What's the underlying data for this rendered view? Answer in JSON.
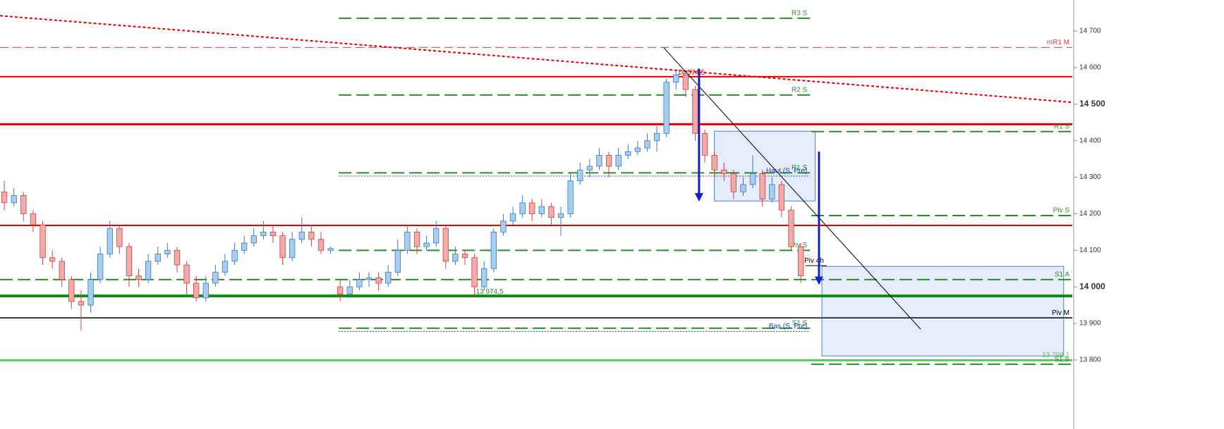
{
  "chart_data": {
    "type": "candlestick",
    "xlim": [
      -0.45,
      111.3
    ],
    "ylim": [
      13611,
      14785
    ],
    "yticks": [
      {
        "value": 14700,
        "label": "14 700"
      },
      {
        "value": 14600,
        "label": "14 600"
      },
      {
        "value": 14500,
        "label": "14 500",
        "bold": true
      },
      {
        "value": 14400,
        "label": "14 400"
      },
      {
        "value": 14300,
        "label": "14 300"
      },
      {
        "value": 14200,
        "label": "14 200"
      },
      {
        "value": 14100,
        "label": "14 100"
      },
      {
        "value": 14000,
        "label": "14 000",
        "bold": true
      },
      {
        "value": 13900,
        "label": "13 900"
      },
      {
        "value": 13800,
        "label": "13 800"
      }
    ],
    "up_color": "#a9cdee",
    "up_edge": "#3a78c0",
    "down_color": "#f3aaaa",
    "down_edge": "#d04040",
    "candles": [
      [
        14260,
        14290,
        14210,
        14230
      ],
      [
        14230,
        14270,
        14220,
        14250
      ],
      [
        14250,
        14260,
        14180,
        14200
      ],
      [
        14200,
        14210,
        14150,
        14170
      ],
      [
        14170,
        14180,
        14060,
        14080
      ],
      [
        14080,
        14100,
        14050,
        14070
      ],
      [
        14070,
        14080,
        14000,
        14020
      ],
      [
        14020,
        14030,
        13940,
        13960
      ],
      [
        13960,
        13990,
        13880,
        13950
      ],
      [
        13950,
        14040,
        13930,
        14020
      ],
      [
        14020,
        14110,
        14010,
        14090
      ],
      [
        14090,
        14180,
        14080,
        14160
      ],
      [
        14160,
        14170,
        14090,
        14110
      ],
      [
        14110,
        14120,
        14000,
        14030
      ],
      [
        14030,
        14050,
        14000,
        14020
      ],
      [
        14020,
        14090,
        14010,
        14070
      ],
      [
        14070,
        14110,
        14060,
        14090
      ],
      [
        14090,
        14120,
        14080,
        14100
      ],
      [
        14100,
        14110,
        14040,
        14060
      ],
      [
        14060,
        14070,
        13980,
        14010
      ],
      [
        14010,
        14030,
        13960,
        13970
      ],
      [
        13970,
        14030,
        13960,
        14010
      ],
      [
        14010,
        14060,
        14000,
        14040
      ],
      [
        14040,
        14090,
        14030,
        14070
      ],
      [
        14070,
        14120,
        14060,
        14100
      ],
      [
        14100,
        14140,
        14090,
        14120
      ],
      [
        14120,
        14160,
        14110,
        14140
      ],
      [
        14140,
        14180,
        14130,
        14150
      ],
      [
        14150,
        14170,
        14120,
        14140
      ],
      [
        14140,
        14150,
        14060,
        14080
      ],
      [
        14080,
        14150,
        14070,
        14130
      ],
      [
        14130,
        14190,
        14120,
        14150
      ],
      [
        14150,
        14170,
        14110,
        14130
      ],
      [
        14130,
        14150,
        14090,
        14100
      ],
      [
        14100,
        14110,
        14090,
        14105
      ],
      [
        14000,
        14020,
        13960,
        13980
      ],
      [
        13980,
        14020,
        13970,
        14000
      ],
      [
        14000,
        14040,
        13990,
        14020
      ],
      [
        14020,
        14040,
        14000,
        14025
      ],
      [
        14025,
        14040,
        13990,
        14010
      ],
      [
        14010,
        14060,
        14000,
        14040
      ],
      [
        14040,
        14130,
        14030,
        14100
      ],
      [
        14100,
        14170,
        14090,
        14150
      ],
      [
        14150,
        14160,
        14090,
        14110
      ],
      [
        14110,
        14140,
        14100,
        14120
      ],
      [
        14120,
        14180,
        14110,
        14160
      ],
      [
        14160,
        14170,
        14050,
        14070
      ],
      [
        14070,
        14110,
        14060,
        14090
      ],
      [
        14090,
        14100,
        14060,
        14080
      ],
      [
        14080,
        14090,
        13975,
        14000
      ],
      [
        14000,
        14070,
        13990,
        14050
      ],
      [
        14050,
        14160,
        14040,
        14150
      ],
      [
        14150,
        14200,
        14140,
        14180
      ],
      [
        14180,
        14220,
        14170,
        14200
      ],
      [
        14200,
        14250,
        14190,
        14230
      ],
      [
        14230,
        14240,
        14180,
        14200
      ],
      [
        14200,
        14240,
        14190,
        14220
      ],
      [
        14220,
        14230,
        14170,
        14190
      ],
      [
        14190,
        14220,
        14140,
        14200
      ],
      [
        14200,
        14310,
        14190,
        14290
      ],
      [
        14290,
        14340,
        14280,
        14320
      ],
      [
        14320,
        14350,
        14300,
        14330
      ],
      [
        14330,
        14380,
        14320,
        14360
      ],
      [
        14360,
        14370,
        14300,
        14330
      ],
      [
        14330,
        14380,
        14320,
        14360
      ],
      [
        14360,
        14390,
        14350,
        14370
      ],
      [
        14370,
        14400,
        14360,
        14380
      ],
      [
        14380,
        14420,
        14370,
        14400
      ],
      [
        14400,
        14440,
        14370,
        14420
      ],
      [
        14420,
        14570,
        14410,
        14560
      ],
      [
        14560,
        14595,
        14540,
        14580
      ],
      [
        14580,
        14590,
        14520,
        14540
      ],
      [
        14540,
        14550,
        14400,
        14420
      ],
      [
        14420,
        14430,
        14340,
        14360
      ],
      [
        14360,
        14370,
        14300,
        14320
      ],
      [
        14320,
        14340,
        14290,
        14310
      ],
      [
        14310,
        14320,
        14240,
        14260
      ],
      [
        14260,
        14300,
        14250,
        14280
      ],
      [
        14280,
        14360,
        14270,
        14310
      ],
      [
        14310,
        14320,
        14220,
        14240
      ],
      [
        14240,
        14300,
        14230,
        14280
      ],
      [
        14280,
        14290,
        14190,
        14210
      ],
      [
        14210,
        14220,
        14100,
        14110
      ],
      [
        14110,
        14120,
        14010,
        14030
      ]
    ],
    "levels": [
      {
        "label": "R3 S",
        "value": 14735,
        "color": "#2e8b2e",
        "style": "dashed",
        "width": 2,
        "x": [
          34.85,
          83.97
        ]
      },
      {
        "label": "mR1 M",
        "value": 14655,
        "color": "#e04040",
        "style": "dashed",
        "width": 1,
        "x": [
          -0.45,
          111.3
        ]
      },
      {
        "value": 14575,
        "color": "#e00000",
        "style": "solid",
        "width": 2,
        "x": [
          -0.45,
          111.3
        ]
      },
      {
        "label": "R2 S",
        "value": 14525,
        "color": "#2e8b2e",
        "style": "dashed",
        "width": 2,
        "x": [
          34.85,
          83.97
        ]
      },
      {
        "value": 14445,
        "color": "#e00000",
        "style": "solid",
        "width": 3,
        "x": [
          -0.45,
          111.3
        ]
      },
      {
        "label": "R1 S",
        "value": 14425,
        "color": "#2e8b2e",
        "style": "dashed",
        "width": 2,
        "x": [
          84.1,
          111.3
        ]
      },
      {
        "label": "R1 S",
        "value": 14312,
        "color": "#2e8b2e",
        "style": "dashed",
        "width": 2,
        "x": [
          34.85,
          83.97
        ]
      },
      {
        "label": "Haut (S. Pre)",
        "value": 14303,
        "color": "#2040c0",
        "style": "dotted",
        "width": 1,
        "x": [
          34.85,
          83.97
        ]
      },
      {
        "label": "Piv S",
        "value": 14195,
        "color": "#2e8b2e",
        "style": "dashed",
        "width": 2,
        "x": [
          84.1,
          111.3
        ]
      },
      {
        "value": 14168,
        "color": "#e00000",
        "style": "solid",
        "width": 2,
        "x": [
          -0.45,
          111.3
        ]
      },
      {
        "label": "Piv S",
        "value": 14100,
        "color": "#2e8b2e",
        "style": "dashed",
        "width": 2,
        "x": [
          34.85,
          83.97
        ]
      },
      {
        "label": "Piv 4h",
        "value": 14058,
        "color": "#000000",
        "style": "solid",
        "width": 1,
        "x": [
          83.5,
          85.7
        ]
      },
      {
        "label": "S1 A",
        "value": 14020,
        "color": "#2e8b2e",
        "style": "dashed",
        "width": 2,
        "x": [
          -0.45,
          111.3
        ]
      },
      {
        "value": 13975,
        "color": "#108a10",
        "style": "solid",
        "width": 4,
        "x": [
          -0.45,
          111.3
        ]
      },
      {
        "label": "Piv M",
        "value": 13915,
        "color": "#000000",
        "style": "solid",
        "width": 1.5,
        "x": [
          -0.45,
          111.3
        ]
      },
      {
        "label": "S1 S",
        "value": 13887,
        "color": "#2e8b2e",
        "style": "dashed",
        "width": 2,
        "x": [
          34.85,
          83.97
        ]
      },
      {
        "label": "Bas (S. Pre)",
        "value": 13878,
        "color": "#2040c0",
        "style": "dotted",
        "width": 1,
        "x": [
          34.85,
          83.97
        ]
      },
      {
        "label": "13 799,1",
        "value": 13799.1,
        "color": "#55cc55",
        "style": "solid",
        "width": 3,
        "x": [
          -0.45,
          111.3
        ]
      },
      {
        "label": "S1 S",
        "value": 13788,
        "color": "#2e8b2e",
        "style": "dashed",
        "width": 2,
        "x": [
          84.1,
          111.3
        ]
      }
    ],
    "trendlines": [
      {
        "x": [
          -0.45,
          111.3
        ],
        "y": [
          14742,
          14505
        ],
        "color": "#e00000",
        "style": "dotted",
        "width": 2
      },
      {
        "x": [
          68.7,
          95.5
        ],
        "y": [
          14655,
          13884
        ],
        "color": "#000000",
        "style": "solid",
        "width": 1
      }
    ],
    "arrows": [
      {
        "x": 72.4,
        "y": [
          14597,
          14245
        ],
        "color": "#1020d0"
      },
      {
        "x": 84.9,
        "y": [
          14370,
          14017
        ],
        "color": "#1020d0"
      }
    ],
    "zones": [
      {
        "x": [
          74.0,
          84.5
        ],
        "y": [
          14426,
          14235
        ],
        "color": "#5080e0"
      },
      {
        "x": [
          85.2,
          110.4
        ],
        "y": [
          14056,
          13811
        ],
        "color": "#5080e0"
      }
    ],
    "annotations": [
      {
        "text": "14 574,5",
        "x": 70,
        "y": 14574.5,
        "color": "#e00000"
      },
      {
        "text": "13 974,5",
        "x": 49,
        "y": 13974.5,
        "color": "#2e8b2e"
      }
    ]
  }
}
